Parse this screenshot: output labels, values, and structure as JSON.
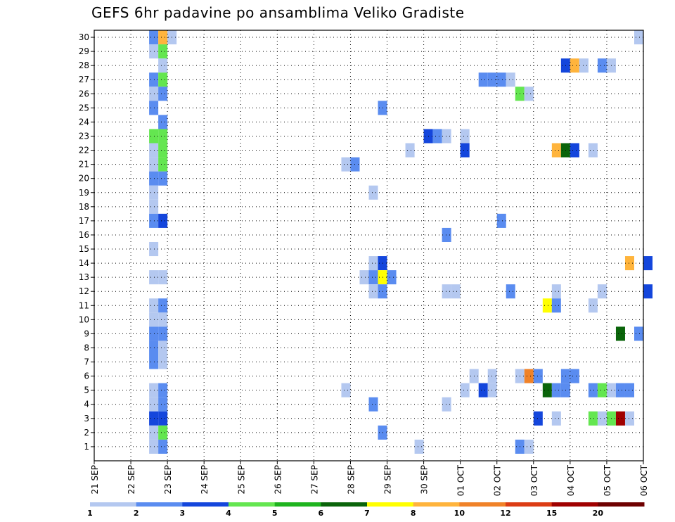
{
  "title": "GEFS 6hr padavine po ansamblima Veliko Gradiste",
  "chart_data": {
    "type": "heatmap",
    "title": "GEFS 6hr padavine po ansamblima Veliko Gradiste",
    "x_dates": [
      "21 SEP",
      "22 SEP",
      "23 SEP",
      "24 SEP",
      "25 SEP",
      "26 SEP",
      "27 SEP",
      "28 SEP",
      "29 SEP",
      "30 SEP",
      "01 OCT",
      "02 OCT",
      "03 OCT",
      "04 OCT",
      "05 OCT",
      "06 OCT"
    ],
    "x_step_hours": 6,
    "y_members": [
      1,
      2,
      3,
      4,
      5,
      6,
      7,
      8,
      9,
      10,
      11,
      12,
      13,
      14,
      15,
      16,
      17,
      18,
      19,
      20,
      21,
      22,
      23,
      24,
      25,
      26,
      27,
      28,
      29,
      30
    ],
    "grid": true,
    "legend": "bottom colorbar",
    "colorbar": {
      "labels": [
        "1",
        "2",
        "3",
        "4",
        "5",
        "6",
        "7",
        "8",
        "10",
        "12",
        "15",
        "20"
      ],
      "bounds": [
        1,
        2,
        3,
        4,
        5,
        6,
        7,
        8,
        10,
        12,
        15,
        20,
        30
      ],
      "colors": [
        "#b4c8f0",
        "#5a8cf0",
        "#1446dc",
        "#64e650",
        "#1eb41e",
        "#0a640a",
        "#ffff00",
        "#ffb43c",
        "#f08228",
        "#dc3c14",
        "#a00000",
        "#6e0000"
      ]
    },
    "cells": [
      {
        "member": 30,
        "date": "22 SEP",
        "hour": 12,
        "value": 2.5
      },
      {
        "member": 30,
        "date": "22 SEP",
        "hour": 18,
        "value": 9
      },
      {
        "member": 30,
        "date": "23 SEP",
        "hour": 0,
        "value": 1.5
      },
      {
        "member": 30,
        "date": "05 OCT",
        "hour": 18,
        "value": 1.5
      },
      {
        "member": 29,
        "date": "22 SEP",
        "hour": 12,
        "value": 1.5
      },
      {
        "member": 29,
        "date": "22 SEP",
        "hour": 18,
        "value": 4.5
      },
      {
        "member": 28,
        "date": "22 SEP",
        "hour": 18,
        "value": 1.5
      },
      {
        "member": 28,
        "date": "03 OCT",
        "hour": 18,
        "value": 3.5
      },
      {
        "member": 28,
        "date": "04 OCT",
        "hour": 0,
        "value": 9
      },
      {
        "member": 28,
        "date": "04 OCT",
        "hour": 6,
        "value": 1.5
      },
      {
        "member": 28,
        "date": "04 OCT",
        "hour": 18,
        "value": 2.5
      },
      {
        "member": 28,
        "date": "05 OCT",
        "hour": 0,
        "value": 1.5
      },
      {
        "member": 27,
        "date": "22 SEP",
        "hour": 12,
        "value": 2.5
      },
      {
        "member": 27,
        "date": "22 SEP",
        "hour": 18,
        "value": 4.5
      },
      {
        "member": 27,
        "date": "01 OCT",
        "hour": 12,
        "value": 2.5
      },
      {
        "member": 27,
        "date": "01 OCT",
        "hour": 18,
        "value": 2.5
      },
      {
        "member": 27,
        "date": "02 OCT",
        "hour": 0,
        "value": 2.5
      },
      {
        "member": 27,
        "date": "02 OCT",
        "hour": 6,
        "value": 1.5
      },
      {
        "member": 26,
        "date": "22 SEP",
        "hour": 12,
        "value": 1.5
      },
      {
        "member": 26,
        "date": "22 SEP",
        "hour": 18,
        "value": 2.5
      },
      {
        "member": 26,
        "date": "02 OCT",
        "hour": 12,
        "value": 4.5
      },
      {
        "member": 26,
        "date": "02 OCT",
        "hour": 18,
        "value": 1.5
      },
      {
        "member": 25,
        "date": "22 SEP",
        "hour": 12,
        "value": 2.5
      },
      {
        "member": 25,
        "date": "28 SEP",
        "hour": 18,
        "value": 2.5
      },
      {
        "member": 24,
        "date": "22 SEP",
        "hour": 18,
        "value": 2.5
      },
      {
        "member": 23,
        "date": "22 SEP",
        "hour": 12,
        "value": 4.5
      },
      {
        "member": 23,
        "date": "22 SEP",
        "hour": 18,
        "value": 4.5
      },
      {
        "member": 23,
        "date": "30 SEP",
        "hour": 0,
        "value": 3.5
      },
      {
        "member": 23,
        "date": "30 SEP",
        "hour": 6,
        "value": 2.5
      },
      {
        "member": 23,
        "date": "30 SEP",
        "hour": 12,
        "value": 1.5
      },
      {
        "member": 23,
        "date": "01 OCT",
        "hour": 0,
        "value": 1.5
      },
      {
        "member": 22,
        "date": "22 SEP",
        "hour": 12,
        "value": 1.5
      },
      {
        "member": 22,
        "date": "22 SEP",
        "hour": 18,
        "value": 4.5
      },
      {
        "member": 22,
        "date": "29 SEP",
        "hour": 12,
        "value": 1.5
      },
      {
        "member": 22,
        "date": "01 OCT",
        "hour": 0,
        "value": 3.5
      },
      {
        "member": 22,
        "date": "03 OCT",
        "hour": 12,
        "value": 9
      },
      {
        "member": 22,
        "date": "03 OCT",
        "hour": 18,
        "value": 6.5
      },
      {
        "member": 22,
        "date": "04 OCT",
        "hour": 0,
        "value": 3.5
      },
      {
        "member": 22,
        "date": "04 OCT",
        "hour": 12,
        "value": 1.5
      },
      {
        "member": 21,
        "date": "22 SEP",
        "hour": 12,
        "value": 1.5
      },
      {
        "member": 21,
        "date": "22 SEP",
        "hour": 18,
        "value": 4.5
      },
      {
        "member": 21,
        "date": "27 SEP",
        "hour": 18,
        "value": 1.5
      },
      {
        "member": 21,
        "date": "28 SEP",
        "hour": 0,
        "value": 2.5
      },
      {
        "member": 20,
        "date": "22 SEP",
        "hour": 12,
        "value": 2.5
      },
      {
        "member": 20,
        "date": "22 SEP",
        "hour": 18,
        "value": 2.5
      },
      {
        "member": 19,
        "date": "22 SEP",
        "hour": 12,
        "value": 1.5
      },
      {
        "member": 19,
        "date": "28 SEP",
        "hour": 12,
        "value": 1.5
      },
      {
        "member": 18,
        "date": "22 SEP",
        "hour": 12,
        "value": 1.5
      },
      {
        "member": 17,
        "date": "22 SEP",
        "hour": 12,
        "value": 2.5
      },
      {
        "member": 17,
        "date": "22 SEP",
        "hour": 18,
        "value": 3.5
      },
      {
        "member": 17,
        "date": "02 OCT",
        "hour": 0,
        "value": 2.5
      },
      {
        "member": 16,
        "date": "30 SEP",
        "hour": 12,
        "value": 2.5
      },
      {
        "member": 15,
        "date": "22 SEP",
        "hour": 12,
        "value": 1.5
      },
      {
        "member": 14,
        "date": "28 SEP",
        "hour": 12,
        "value": 1.5
      },
      {
        "member": 14,
        "date": "28 SEP",
        "hour": 18,
        "value": 3.5
      },
      {
        "member": 14,
        "date": "05 OCT",
        "hour": 12,
        "value": 9
      },
      {
        "member": 14,
        "date": "06 OCT",
        "hour": 0,
        "value": 3.5
      },
      {
        "member": 13,
        "date": "22 SEP",
        "hour": 12,
        "value": 1.5
      },
      {
        "member": 13,
        "date": "22 SEP",
        "hour": 18,
        "value": 1.5
      },
      {
        "member": 13,
        "date": "28 SEP",
        "hour": 6,
        "value": 1.5
      },
      {
        "member": 13,
        "date": "28 SEP",
        "hour": 12,
        "value": 2.5
      },
      {
        "member": 13,
        "date": "28 SEP",
        "hour": 18,
        "value": 7.5
      },
      {
        "member": 13,
        "date": "29 SEP",
        "hour": 0,
        "value": 2.5
      },
      {
        "member": 12,
        "date": "28 SEP",
        "hour": 12,
        "value": 1.5
      },
      {
        "member": 12,
        "date": "28 SEP",
        "hour": 18,
        "value": 2.5
      },
      {
        "member": 12,
        "date": "30 SEP",
        "hour": 12,
        "value": 1.5
      },
      {
        "member": 12,
        "date": "30 SEP",
        "hour": 18,
        "value": 1.5
      },
      {
        "member": 12,
        "date": "02 OCT",
        "hour": 6,
        "value": 2.5
      },
      {
        "member": 12,
        "date": "03 OCT",
        "hour": 12,
        "value": 1.5
      },
      {
        "member": 12,
        "date": "04 OCT",
        "hour": 18,
        "value": 1.5
      },
      {
        "member": 12,
        "date": "06 OCT",
        "hour": 0,
        "value": 3.5
      },
      {
        "member": 11,
        "date": "22 SEP",
        "hour": 12,
        "value": 1.5
      },
      {
        "member": 11,
        "date": "22 SEP",
        "hour": 18,
        "value": 2.5
      },
      {
        "member": 11,
        "date": "03 OCT",
        "hour": 6,
        "value": 7.5
      },
      {
        "member": 11,
        "date": "03 OCT",
        "hour": 12,
        "value": 2.5
      },
      {
        "member": 11,
        "date": "04 OCT",
        "hour": 12,
        "value": 1.5
      },
      {
        "member": 10,
        "date": "22 SEP",
        "hour": 12,
        "value": 1.5
      },
      {
        "member": 10,
        "date": "22 SEP",
        "hour": 18,
        "value": 1.5
      },
      {
        "member": 9,
        "date": "22 SEP",
        "hour": 12,
        "value": 2.5
      },
      {
        "member": 9,
        "date": "22 SEP",
        "hour": 18,
        "value": 2.5
      },
      {
        "member": 9,
        "date": "05 OCT",
        "hour": 6,
        "value": 6.5
      },
      {
        "member": 9,
        "date": "05 OCT",
        "hour": 18,
        "value": 2.5
      },
      {
        "member": 8,
        "date": "22 SEP",
        "hour": 12,
        "value": 2.5
      },
      {
        "member": 8,
        "date": "22 SEP",
        "hour": 18,
        "value": 1.5
      },
      {
        "member": 7,
        "date": "22 SEP",
        "hour": 12,
        "value": 2.5
      },
      {
        "member": 7,
        "date": "22 SEP",
        "hour": 18,
        "value": 1.5
      },
      {
        "member": 6,
        "date": "01 OCT",
        "hour": 6,
        "value": 1.5
      },
      {
        "member": 6,
        "date": "01 OCT",
        "hour": 18,
        "value": 1.5
      },
      {
        "member": 6,
        "date": "02 OCT",
        "hour": 12,
        "value": 1.5
      },
      {
        "member": 6,
        "date": "02 OCT",
        "hour": 18,
        "value": 11
      },
      {
        "member": 6,
        "date": "03 OCT",
        "hour": 0,
        "value": 2.5
      },
      {
        "member": 6,
        "date": "03 OCT",
        "hour": 18,
        "value": 2.5
      },
      {
        "member": 6,
        "date": "04 OCT",
        "hour": 0,
        "value": 2.5
      },
      {
        "member": 5,
        "date": "22 SEP",
        "hour": 12,
        "value": 1.5
      },
      {
        "member": 5,
        "date": "22 SEP",
        "hour": 18,
        "value": 2.5
      },
      {
        "member": 5,
        "date": "27 SEP",
        "hour": 18,
        "value": 1.5
      },
      {
        "member": 5,
        "date": "01 OCT",
        "hour": 0,
        "value": 1.5
      },
      {
        "member": 5,
        "date": "01 OCT",
        "hour": 12,
        "value": 3.5
      },
      {
        "member": 5,
        "date": "01 OCT",
        "hour": 18,
        "value": 1.5
      },
      {
        "member": 5,
        "date": "03 OCT",
        "hour": 6,
        "value": 6.5
      },
      {
        "member": 5,
        "date": "03 OCT",
        "hour": 12,
        "value": 2.5
      },
      {
        "member": 5,
        "date": "03 OCT",
        "hour": 18,
        "value": 2.5
      },
      {
        "member": 5,
        "date": "04 OCT",
        "hour": 12,
        "value": 2.5
      },
      {
        "member": 5,
        "date": "04 OCT",
        "hour": 18,
        "value": 4.5
      },
      {
        "member": 5,
        "date": "05 OCT",
        "hour": 0,
        "value": 1.5
      },
      {
        "member": 5,
        "date": "05 OCT",
        "hour": 6,
        "value": 2.5
      },
      {
        "member": 5,
        "date": "05 OCT",
        "hour": 12,
        "value": 2.5
      },
      {
        "member": 4,
        "date": "22 SEP",
        "hour": 12,
        "value": 1.5
      },
      {
        "member": 4,
        "date": "22 SEP",
        "hour": 18,
        "value": 2.5
      },
      {
        "member": 4,
        "date": "28 SEP",
        "hour": 12,
        "value": 2.5
      },
      {
        "member": 4,
        "date": "30 SEP",
        "hour": 12,
        "value": 1.5
      },
      {
        "member": 3,
        "date": "22 SEP",
        "hour": 12,
        "value": 3.5
      },
      {
        "member": 3,
        "date": "22 SEP",
        "hour": 18,
        "value": 3.5
      },
      {
        "member": 3,
        "date": "03 OCT",
        "hour": 0,
        "value": 3.5
      },
      {
        "member": 3,
        "date": "03 OCT",
        "hour": 12,
        "value": 1.5
      },
      {
        "member": 3,
        "date": "04 OCT",
        "hour": 12,
        "value": 4.5
      },
      {
        "member": 3,
        "date": "04 OCT",
        "hour": 18,
        "value": 1.5
      },
      {
        "member": 3,
        "date": "05 OCT",
        "hour": 0,
        "value": 4.5
      },
      {
        "member": 3,
        "date": "05 OCT",
        "hour": 6,
        "value": 16
      },
      {
        "member": 3,
        "date": "05 OCT",
        "hour": 12,
        "value": 1.5
      },
      {
        "member": 2,
        "date": "22 SEP",
        "hour": 12,
        "value": 1.5
      },
      {
        "member": 2,
        "date": "22 SEP",
        "hour": 18,
        "value": 4.5
      },
      {
        "member": 2,
        "date": "28 SEP",
        "hour": 18,
        "value": 2.5
      },
      {
        "member": 1,
        "date": "22 SEP",
        "hour": 12,
        "value": 1.5
      },
      {
        "member": 1,
        "date": "22 SEP",
        "hour": 18,
        "value": 2.5
      },
      {
        "member": 1,
        "date": "29 SEP",
        "hour": 18,
        "value": 1.5
      },
      {
        "member": 1,
        "date": "02 OCT",
        "hour": 12,
        "value": 2.5
      },
      {
        "member": 1,
        "date": "02 OCT",
        "hour": 18,
        "value": 1.5
      }
    ]
  }
}
